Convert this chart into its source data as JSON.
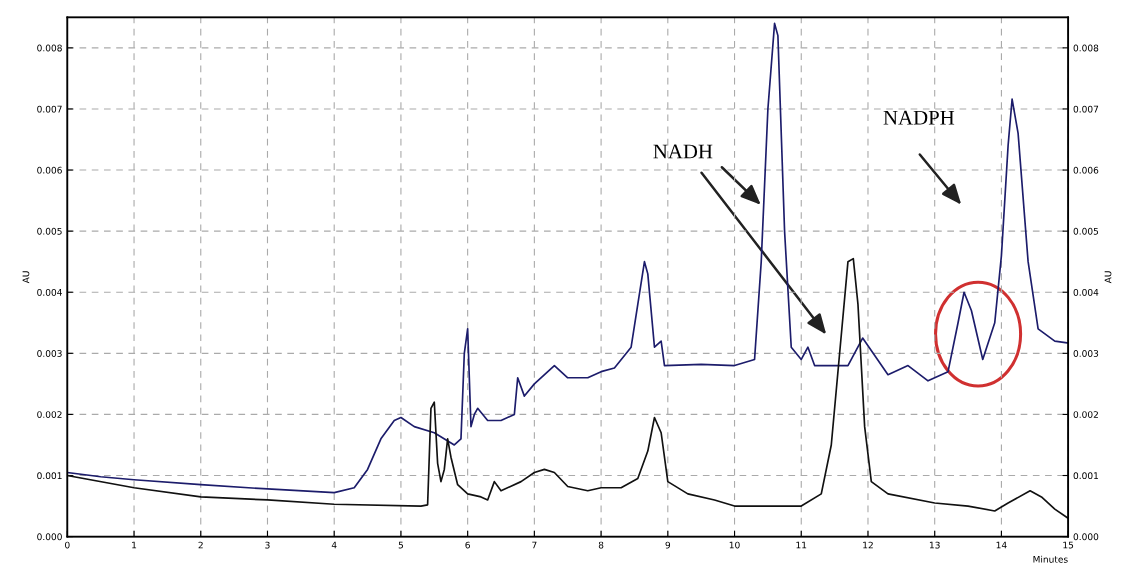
{
  "chart_data": {
    "type": "line",
    "xlabel": "Minutes",
    "ylabel": "AU",
    "y2label": "AU",
    "xlim": [
      0,
      15
    ],
    "xticks": [
      0,
      1,
      2,
      3,
      4,
      5,
      6,
      7,
      8,
      9,
      10,
      11,
      12,
      13,
      14,
      15
    ],
    "ylim": [
      0,
      0.0085
    ],
    "yticks": [
      {
        "value": 0,
        "label": "0.000"
      },
      {
        "value": 0.001,
        "label": "0.001"
      },
      {
        "value": 0.002,
        "label": "0.002"
      },
      {
        "value": 0.003,
        "label": "0.003"
      },
      {
        "value": 0.004,
        "label": "0.004"
      },
      {
        "value": 0.005,
        "label": "0.005"
      },
      {
        "value": 0.006,
        "label": "0.006"
      },
      {
        "value": 0.007,
        "label": "0.007"
      },
      {
        "value": 0.008,
        "label": "0.008"
      }
    ],
    "y2lim": [
      0,
      0.0085
    ],
    "y2ticks": [
      {
        "value": 0,
        "label": "0.000"
      },
      {
        "value": 0.001,
        "label": "0.001"
      },
      {
        "value": 0.002,
        "label": "0.002"
      },
      {
        "value": 0.003,
        "label": "0.003"
      },
      {
        "value": 0.004,
        "label": "0.004"
      },
      {
        "value": 0.005,
        "label": "0.005"
      },
      {
        "value": 0.006,
        "label": "0.006"
      },
      {
        "value": 0.007,
        "label": "0.007"
      },
      {
        "value": 0.008,
        "label": "0.008"
      }
    ],
    "grid": true,
    "legend": false,
    "marker": "none",
    "line_style": "solid",
    "annotations": [
      "NADH",
      "NADPH"
    ],
    "series": [
      {
        "color": "#1c1c6b",
        "x": [
          0,
          0.5,
          1,
          2,
          3,
          4,
          4.3,
          4.5,
          4.7,
          4.9,
          5.0,
          5.2,
          5.5,
          5.8,
          5.9,
          5.95,
          6.0,
          6.05,
          6.1,
          6.15,
          6.3,
          6.5,
          6.7,
          6.75,
          6.85,
          7.0,
          7.3,
          7.5,
          7.8,
          8.0,
          8.2,
          8.45,
          8.55,
          8.65,
          8.7,
          8.8,
          8.9,
          8.95,
          9.5,
          10.0,
          10.3,
          10.4,
          10.5,
          10.6,
          10.65,
          10.75,
          10.85,
          11.0,
          11.1,
          11.2,
          11.5,
          11.7,
          11.92,
          12.3,
          12.6,
          12.9,
          13.2,
          13.35,
          13.44,
          13.55,
          13.72,
          13.9,
          14.0,
          14.1,
          14.16,
          14.25,
          14.4,
          14.55,
          14.8,
          15.0
        ],
        "values": [
          0.00105,
          0.00098,
          0.00093,
          0.00085,
          0.00078,
          0.00072,
          0.0008,
          0.0011,
          0.0016,
          0.0019,
          0.00195,
          0.0018,
          0.0017,
          0.0015,
          0.0016,
          0.003,
          0.0034,
          0.0018,
          0.002,
          0.0021,
          0.0019,
          0.0019,
          0.002,
          0.0026,
          0.0023,
          0.0025,
          0.0028,
          0.0026,
          0.0026,
          0.0027,
          0.00276,
          0.0031,
          0.0038,
          0.0045,
          0.0043,
          0.0031,
          0.0032,
          0.0028,
          0.00282,
          0.0028,
          0.0029,
          0.0045,
          0.007,
          0.0084,
          0.0082,
          0.005,
          0.0031,
          0.0029,
          0.0031,
          0.0028,
          0.0028,
          0.0028,
          0.00325,
          0.00265,
          0.0028,
          0.00255,
          0.0027,
          0.0035,
          0.004,
          0.0037,
          0.0029,
          0.0035,
          0.0046,
          0.0064,
          0.00716,
          0.0066,
          0.0045,
          0.0034,
          0.0032,
          0.00317
        ]
      },
      {
        "color": "#111111",
        "x": [
          0,
          1,
          2,
          3,
          4,
          5.3,
          5.4,
          5.45,
          5.5,
          5.55,
          5.6,
          5.65,
          5.7,
          5.75,
          5.85,
          6.0,
          6.2,
          6.3,
          6.4,
          6.5,
          6.8,
          7.0,
          7.15,
          7.3,
          7.5,
          7.8,
          8.0,
          8.3,
          8.55,
          8.7,
          8.8,
          8.9,
          9.0,
          9.3,
          9.7,
          10.0,
          10.5,
          11.0,
          11.3,
          11.45,
          11.6,
          11.7,
          11.78,
          11.85,
          11.95,
          12.05,
          12.3,
          13.0,
          13.5,
          13.9,
          14.1,
          14.43,
          14.6,
          14.8,
          15.0
        ],
        "values": [
          0.001,
          0.0008,
          0.00065,
          0.0006,
          0.00053,
          0.0005,
          0.00052,
          0.0021,
          0.0022,
          0.0012,
          0.0009,
          0.0011,
          0.0016,
          0.0013,
          0.00085,
          0.0007,
          0.00065,
          0.0006,
          0.0009,
          0.00075,
          0.0009,
          0.00105,
          0.0011,
          0.00105,
          0.00082,
          0.00075,
          0.0008,
          0.0008,
          0.00095,
          0.0014,
          0.00195,
          0.0017,
          0.0009,
          0.0007,
          0.0006,
          0.0005,
          0.0005,
          0.0005,
          0.0007,
          0.0015,
          0.0033,
          0.0045,
          0.00455,
          0.0038,
          0.0018,
          0.0009,
          0.0007,
          0.00055,
          0.0005,
          0.00042,
          0.00055,
          0.00075,
          0.00065,
          0.00045,
          0.0003
        ]
      }
    ]
  }
}
